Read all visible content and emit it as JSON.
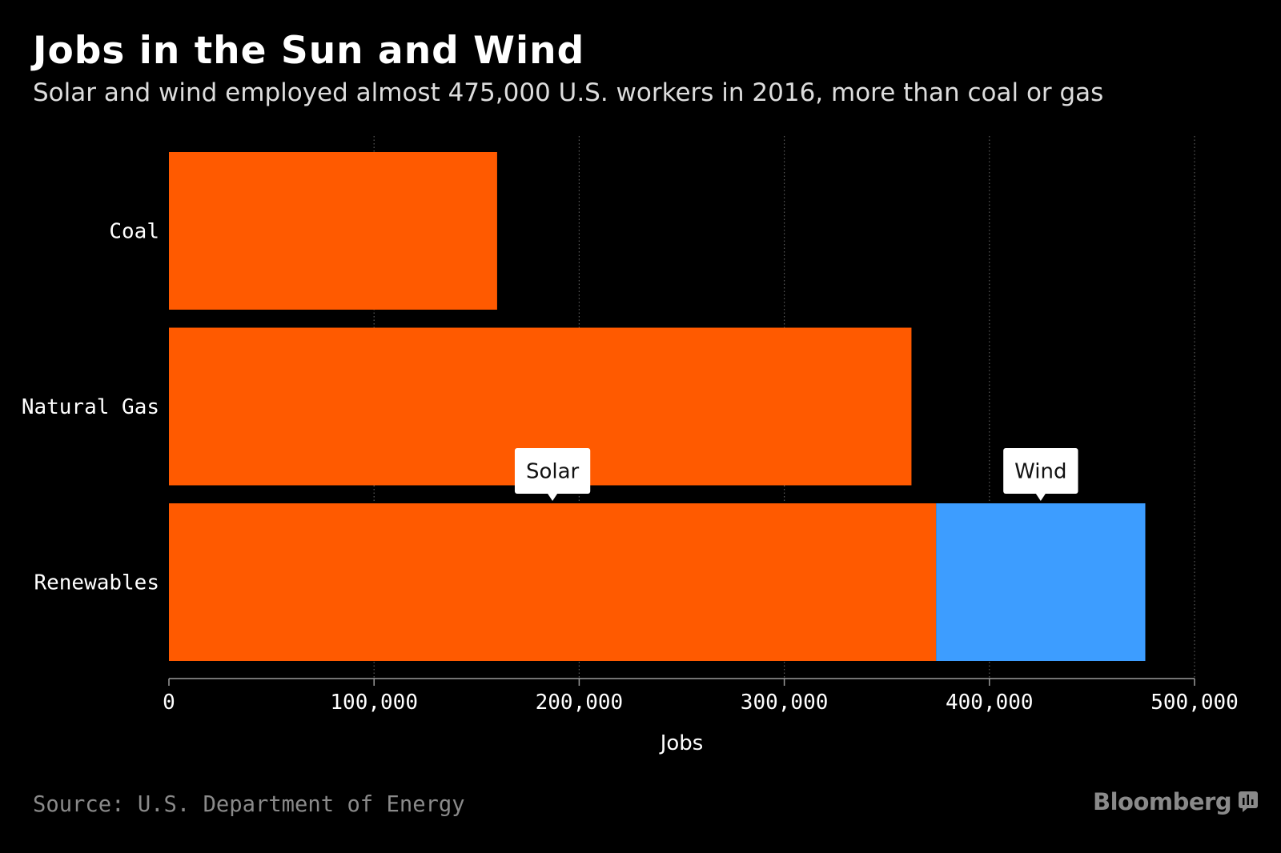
{
  "title": "Jobs in the Sun and Wind",
  "subtitle": "Solar and wind employed almost 475,000 U.S. workers in 2016, more than coal or gas",
  "source": "Source: U.S. Department of Energy",
  "brand": "Bloomberg",
  "brand_icon": "bloomberg-chat-icon",
  "chart_data": {
    "type": "bar",
    "orientation": "horizontal",
    "stacked": true,
    "categories": [
      "Coal",
      "Natural Gas",
      "Renewables"
    ],
    "series": [
      {
        "name": "Solar",
        "color": "#ff5a00",
        "values": [
          160000,
          362000,
          374000
        ]
      },
      {
        "name": "Wind",
        "color": "#3d9dff",
        "values": [
          0,
          0,
          102000
        ]
      }
    ],
    "annotations": [
      {
        "text": "Solar",
        "category": "Renewables",
        "series": "Solar"
      },
      {
        "text": "Wind",
        "category": "Renewables",
        "series": "Wind"
      }
    ],
    "xlabel": "Jobs",
    "ylabel": "",
    "xlim": [
      0,
      500000
    ],
    "xticks": [
      0,
      100000,
      200000,
      300000,
      400000,
      500000
    ],
    "xtick_labels": [
      "0",
      "100,000",
      "200,000",
      "300,000",
      "400,000",
      "500,000"
    ],
    "grid": "vertical-dotted",
    "legend": "none",
    "colors": {
      "background": "#000000",
      "callout": "#ffffff",
      "callout_text": "#111111"
    }
  }
}
